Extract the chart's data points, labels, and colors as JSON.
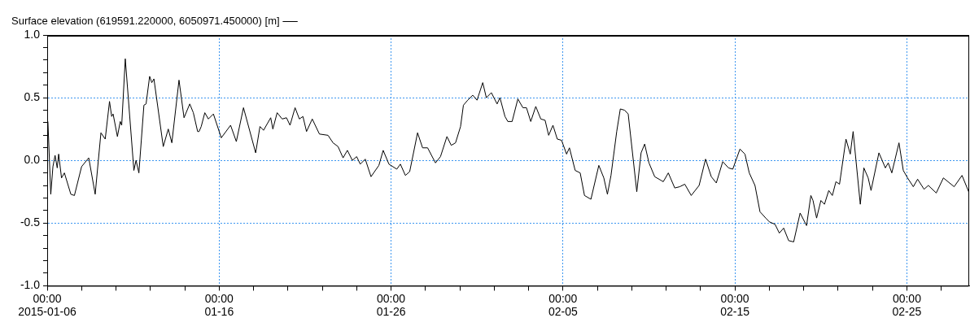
{
  "chart_data": {
    "type": "line",
    "x": [
      "2015-01-06T01:00",
      "2015-01-06T05:00",
      "2015-01-06T08:00",
      "2015-01-06T11:00",
      "2015-01-06T14:00",
      "2015-01-06T16:00",
      "2015-01-06T20:00",
      "2015-01-07T00:00",
      "2015-01-07T09:00",
      "2015-01-07T14:00",
      "2015-01-08T00:00",
      "2015-01-08T10:00",
      "2015-01-08T19:00",
      "2015-01-09T03:00",
      "2015-01-09T09:00",
      "2015-01-09T15:00",
      "2015-01-09T18:00",
      "2015-01-09T20:00",
      "2015-01-10T02:00",
      "2015-01-10T06:00",
      "2015-01-10T08:00",
      "2015-01-10T13:00",
      "2015-01-11T01:00",
      "2015-01-11T04:00",
      "2015-01-11T08:00",
      "2015-01-11T15:00",
      "2015-01-11T18:00",
      "2015-01-11T23:00",
      "2015-01-12T02:00",
      "2015-01-12T05:00",
      "2015-01-12T18:00",
      "2015-01-13T01:00",
      "2015-01-13T06:00",
      "2015-01-13T16:00",
      "2015-01-13T23:00",
      "2015-01-14T07:00",
      "2015-01-14T12:00",
      "2015-01-14T18:00",
      "2015-01-14T20:00",
      "2015-01-14T23:00",
      "2015-01-15T04:00",
      "2015-01-15T09:00",
      "2015-01-15T16:00",
      "2015-01-16T03:00",
      "2015-01-16T16:00",
      "2015-01-17T00:00",
      "2015-01-17T10:00",
      "2015-01-18T03:00",
      "2015-01-18T09:00",
      "2015-01-18T14:00",
      "2015-01-19T00:00",
      "2015-01-19T03:00",
      "2015-01-19T09:00",
      "2015-01-19T16:00",
      "2015-01-19T22:00",
      "2015-01-20T03:00",
      "2015-01-20T10:00",
      "2015-01-20T16:00",
      "2015-01-20T21:00",
      "2015-01-21T02:00",
      "2015-01-21T10:00",
      "2015-01-21T20:00",
      "2015-01-22T08:00",
      "2015-01-22T15:00",
      "2015-01-22T22:00",
      "2015-01-23T05:00",
      "2015-01-23T11:00",
      "2015-01-23T18:00",
      "2015-01-24T00:00",
      "2015-01-24T05:00",
      "2015-01-24T12:00",
      "2015-01-24T20:00",
      "2015-01-25T07:00",
      "2015-01-25T13:00",
      "2015-01-25T21:00",
      "2015-01-26T08:00",
      "2015-01-26T13:00",
      "2015-01-26T20:00",
      "2015-01-27T02:00",
      "2015-01-27T13:00",
      "2015-01-27T20:00",
      "2015-01-28T03:00",
      "2015-01-28T14:00",
      "2015-01-28T21:00",
      "2015-01-29T06:00",
      "2015-01-29T12:00",
      "2015-01-29T18:00",
      "2015-01-30T01:00",
      "2015-01-30T05:00",
      "2015-01-30T11:00",
      "2015-01-30T18:00",
      "2015-01-31T00:00",
      "2015-01-31T08:00",
      "2015-01-31T13:00",
      "2015-01-31T20:00",
      "2015-02-01T04:00",
      "2015-02-01T08:00",
      "2015-02-01T15:00",
      "2015-02-01T19:00",
      "2015-02-02T01:00",
      "2015-02-02T09:00",
      "2015-02-02T16:00",
      "2015-02-02T21:00",
      "2015-02-03T03:00",
      "2015-02-03T10:00",
      "2015-02-03T17:00",
      "2015-02-03T23:00",
      "2015-02-04T04:00",
      "2015-02-04T10:00",
      "2015-02-04T16:00",
      "2015-02-04T22:00",
      "2015-02-05T05:00",
      "2015-02-05T09:00",
      "2015-02-05T17:00",
      "2015-02-06T00:00",
      "2015-02-06T06:00",
      "2015-02-06T15:00",
      "2015-02-07T02:00",
      "2015-02-07T09:00",
      "2015-02-07T14:00",
      "2015-02-07T19:00",
      "2015-02-08T03:00",
      "2015-02-08T08:00",
      "2015-02-08T14:00",
      "2015-02-08T19:00",
      "2015-02-09T07:00",
      "2015-02-09T13:00",
      "2015-02-09T18:00",
      "2015-02-10T00:00",
      "2015-02-10T08:00",
      "2015-02-10T17:00",
      "2015-02-10T20:00",
      "2015-02-11T03:00",
      "2015-02-11T12:00",
      "2015-02-11T19:00",
      "2015-02-12T02:00",
      "2015-02-12T11:00",
      "2015-02-12T22:00",
      "2015-02-13T07:00",
      "2015-02-13T15:00",
      "2015-02-13T22:00",
      "2015-02-14T07:00",
      "2015-02-14T15:00",
      "2015-02-14T21:00",
      "2015-02-15T07:00",
      "2015-02-15T14:00",
      "2015-02-15T20:00",
      "2015-02-16T04:00",
      "2015-02-16T11:00",
      "2015-02-16T19:00",
      "2015-02-17T00:00",
      "2015-02-17T08:00",
      "2015-02-17T14:00",
      "2015-02-17T20:00",
      "2015-02-18T03:00",
      "2015-02-18T10:00",
      "2015-02-18T19:00",
      "2015-02-19T04:00",
      "2015-02-19T10:00",
      "2015-02-19T13:00",
      "2015-02-19T18:00",
      "2015-02-20T00:00",
      "2015-02-20T05:00",
      "2015-02-20T11:00",
      "2015-02-20T16:00",
      "2015-02-20T21:00",
      "2015-02-21T02:00",
      "2015-02-21T11:00",
      "2015-02-21T17:00",
      "2015-02-21T21:00",
      "2015-02-22T07:00",
      "2015-02-22T12:00",
      "2015-02-22T18:00",
      "2015-02-22T22:00",
      "2015-02-23T09:00",
      "2015-02-23T18:00",
      "2015-02-23T22:00",
      "2015-02-24T03:00",
      "2015-02-24T13:00",
      "2015-02-24T19:00",
      "2015-02-25T01:00",
      "2015-02-25T09:00",
      "2015-02-25T15:00",
      "2015-02-26T00:00",
      "2015-02-26T06:00",
      "2015-02-26T17:00",
      "2015-02-27T03:00",
      "2015-02-27T18:00",
      "2015-02-28T05:00",
      "2015-02-28T15:00"
    ],
    "series": [
      {
        "name": "Surface elevation (619591.220000, 6050971.450000) [m]",
        "color": "#000000",
        "values": [
          0.31,
          -0.27,
          -0.05,
          0.04,
          -0.06,
          0.05,
          -0.14,
          -0.1,
          -0.27,
          -0.28,
          -0.05,
          0.02,
          -0.27,
          0.22,
          0.17,
          0.47,
          0.35,
          0.37,
          0.19,
          0.31,
          0.28,
          0.81,
          -0.08,
          0.0,
          -0.1,
          0.44,
          0.45,
          0.67,
          0.62,
          0.65,
          0.11,
          0.25,
          0.14,
          0.64,
          0.34,
          0.45,
          0.38,
          0.23,
          0.23,
          0.27,
          0.38,
          0.33,
          0.37,
          0.18,
          0.28,
          0.15,
          0.42,
          0.06,
          0.27,
          0.24,
          0.34,
          0.25,
          0.38,
          0.33,
          0.34,
          0.28,
          0.42,
          0.33,
          0.35,
          0.23,
          0.33,
          0.21,
          0.2,
          0.14,
          0.11,
          0.02,
          0.08,
          0.0,
          0.03,
          -0.03,
          0.01,
          -0.13,
          -0.04,
          0.08,
          -0.03,
          -0.07,
          -0.03,
          -0.12,
          -0.09,
          0.22,
          0.1,
          0.1,
          -0.02,
          0.03,
          0.19,
          0.12,
          0.14,
          0.27,
          0.44,
          0.48,
          0.52,
          0.48,
          0.62,
          0.5,
          0.54,
          0.45,
          0.5,
          0.35,
          0.31,
          0.31,
          0.49,
          0.42,
          0.42,
          0.31,
          0.43,
          0.33,
          0.32,
          0.2,
          0.28,
          0.17,
          0.16,
          0.05,
          0.1,
          -0.08,
          -0.1,
          -0.28,
          -0.31,
          -0.04,
          -0.14,
          -0.27,
          -0.12,
          0.23,
          0.41,
          0.4,
          0.37,
          -0.25,
          0.06,
          0.13,
          -0.02,
          -0.13,
          -0.16,
          -0.17,
          -0.1,
          -0.22,
          -0.21,
          -0.19,
          -0.28,
          -0.2,
          0.01,
          -0.13,
          -0.18,
          -0.01,
          -0.06,
          -0.07,
          0.09,
          0.05,
          -0.1,
          -0.2,
          -0.41,
          -0.46,
          -0.49,
          -0.51,
          -0.58,
          -0.54,
          -0.64,
          -0.65,
          -0.42,
          -0.52,
          -0.28,
          -0.32,
          -0.46,
          -0.32,
          -0.35,
          -0.24,
          -0.28,
          -0.17,
          -0.19,
          0.17,
          0.05,
          0.23,
          -0.35,
          -0.06,
          -0.14,
          -0.24,
          0.06,
          -0.06,
          -0.02,
          -0.1,
          0.14,
          -0.08,
          -0.14,
          -0.21,
          -0.15,
          -0.23,
          -0.2,
          -0.26,
          -0.14,
          -0.21,
          -0.12,
          -0.26
        ]
      }
    ],
    "xlim": [
      "2015-01-06",
      "2015-02-28T15:00"
    ],
    "xticks": [
      {
        "value": "2015-01-06",
        "label": "00:00\n2015-01-06"
      },
      {
        "value": "2015-01-08",
        "label": null
      },
      {
        "value": "2015-01-10",
        "label": null
      },
      {
        "value": "2015-01-12",
        "label": null
      },
      {
        "value": "2015-01-14",
        "label": null
      },
      {
        "value": "2015-01-16",
        "label": "00:00\n01-16"
      },
      {
        "value": "2015-01-18",
        "label": null
      },
      {
        "value": "2015-01-20",
        "label": null
      },
      {
        "value": "2015-01-22",
        "label": null
      },
      {
        "value": "2015-01-24",
        "label": null
      },
      {
        "value": "2015-01-26",
        "label": "00:00\n01-26"
      },
      {
        "value": "2015-01-28",
        "label": null
      },
      {
        "value": "2015-01-30",
        "label": null
      },
      {
        "value": "2015-02-01",
        "label": null
      },
      {
        "value": "2015-02-03",
        "label": null
      },
      {
        "value": "2015-02-05",
        "label": "00:00\n02-05"
      },
      {
        "value": "2015-02-07",
        "label": null
      },
      {
        "value": "2015-02-09",
        "label": null
      },
      {
        "value": "2015-02-11",
        "label": null
      },
      {
        "value": "2015-02-13",
        "label": null
      },
      {
        "value": "2015-02-15",
        "label": "00:00\n02-15"
      },
      {
        "value": "2015-02-17",
        "label": null
      },
      {
        "value": "2015-02-19",
        "label": null
      },
      {
        "value": "2015-02-21",
        "label": null
      },
      {
        "value": "2015-02-23",
        "label": null
      },
      {
        "value": "2015-02-25",
        "label": "00:00\n02-25"
      },
      {
        "value": "2015-02-27",
        "label": null
      }
    ],
    "ylim": [
      -1,
      1
    ],
    "yticks": [
      {
        "value": -1,
        "label": "-1.0"
      },
      {
        "value": -0.9,
        "label": null
      },
      {
        "value": -0.8,
        "label": null
      },
      {
        "value": -0.7,
        "label": null
      },
      {
        "value": -0.6,
        "label": null
      },
      {
        "value": -0.5,
        "label": "-0.5"
      },
      {
        "value": -0.4,
        "label": null
      },
      {
        "value": -0.3,
        "label": null
      },
      {
        "value": -0.2,
        "label": null
      },
      {
        "value": -0.1,
        "label": null
      },
      {
        "value": 0,
        "label": "0.0"
      },
      {
        "value": 0.1,
        "label": null
      },
      {
        "value": 0.2,
        "label": null
      },
      {
        "value": 0.3,
        "label": null
      },
      {
        "value": 0.4,
        "label": null
      },
      {
        "value": 0.5,
        "label": "0.5"
      },
      {
        "value": 0.6,
        "label": null
      },
      {
        "value": 0.7,
        "label": null
      },
      {
        "value": 0.8,
        "label": null
      },
      {
        "value": 0.9,
        "label": null
      },
      {
        "value": 1,
        "label": "1.0"
      }
    ],
    "grid": true,
    "legend": "top left",
    "marker": "none",
    "line_style": "solid"
  }
}
